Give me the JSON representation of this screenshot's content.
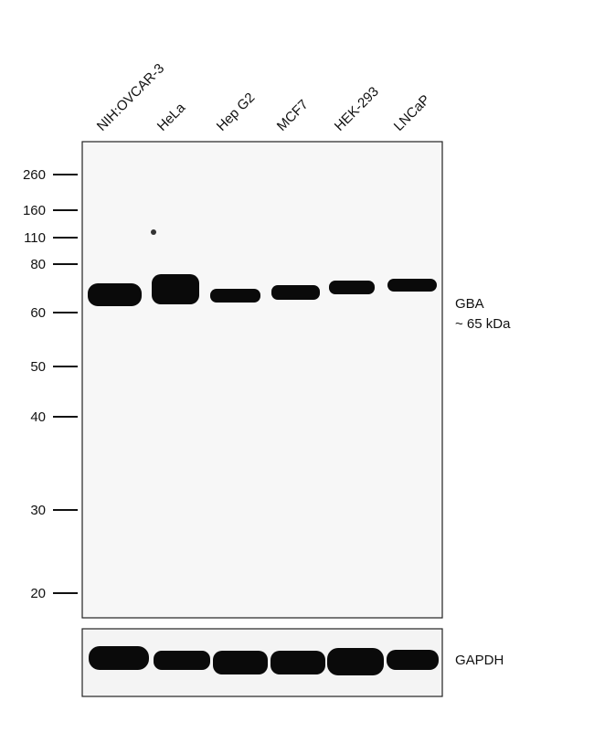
{
  "lanes": [
    "NIH:OVCAR-3",
    "HeLa",
    "Hep G2",
    "MCF7",
    "HEK-293",
    "LNCaP"
  ],
  "markers": [
    "260",
    "160",
    "110",
    "80",
    "60",
    "50",
    "40",
    "30",
    "20"
  ],
  "target": {
    "name": "GBA",
    "size": "~ 65 kDa"
  },
  "loading_control": "GAPDH"
}
